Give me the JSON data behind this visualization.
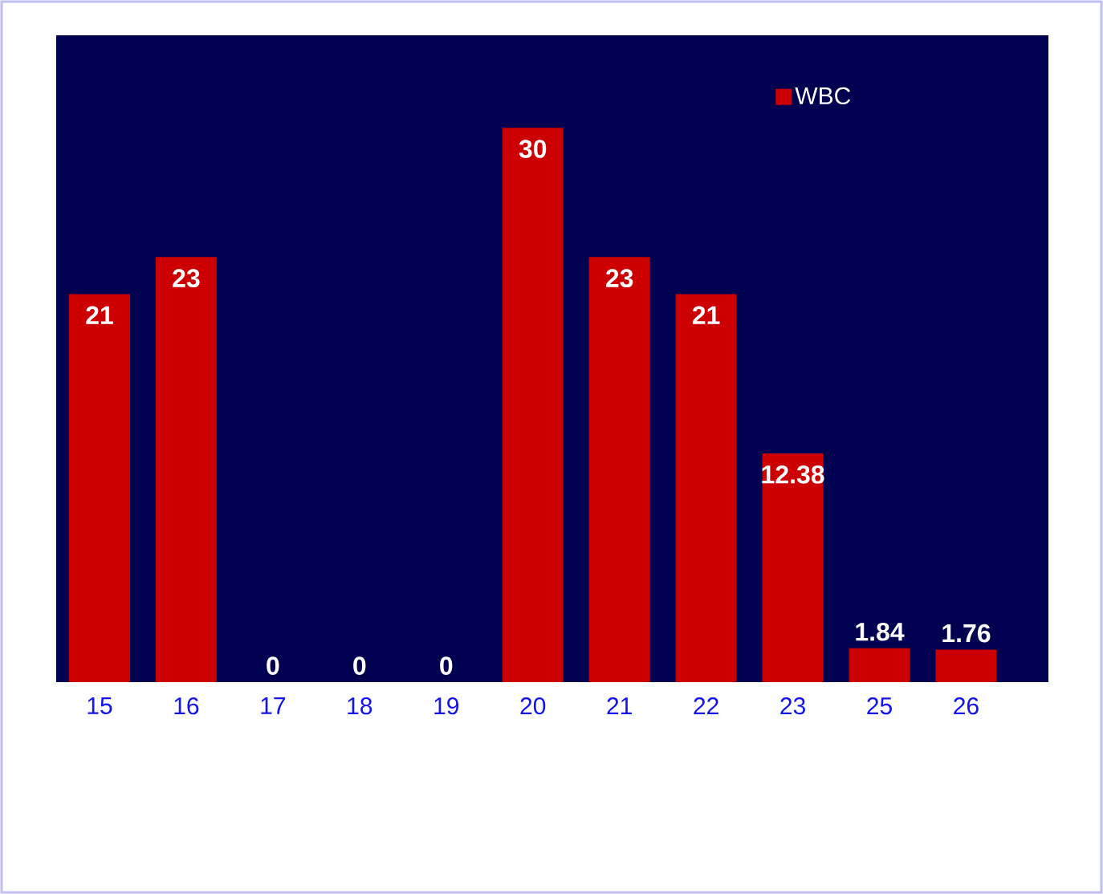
{
  "chart_data": {
    "type": "bar",
    "categories": [
      "15",
      "16",
      "17",
      "18",
      "19",
      "20",
      "21",
      "22",
      "23",
      "25",
      "26"
    ],
    "series": [
      {
        "name": "WBC",
        "color": "#cc0000",
        "values": [
          21,
          23,
          0,
          0,
          0,
          30,
          23,
          21,
          12.38,
          1.84,
          1.76
        ]
      }
    ],
    "ylim": [
      0,
      35
    ],
    "data_labels": true,
    "legend": "top right"
  }
}
